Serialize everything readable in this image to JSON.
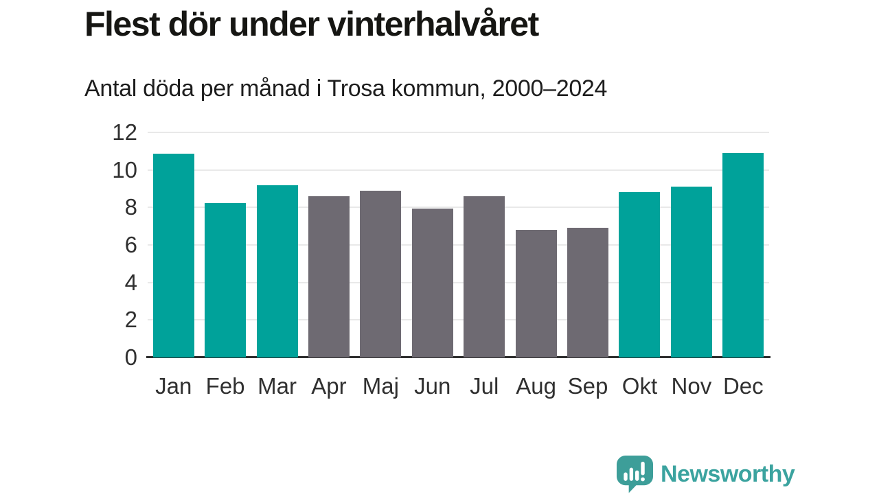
{
  "header": {
    "title": "Flest dör under vinterhalvåret",
    "subtitle": "Antal döda per månad i Trosa kommun, 2000–2024"
  },
  "chart_data": {
    "type": "bar",
    "categories": [
      "Jan",
      "Feb",
      "Mar",
      "Apr",
      "Maj",
      "Jun",
      "Jul",
      "Aug",
      "Sep",
      "Okt",
      "Nov",
      "Dec"
    ],
    "values": [
      10.85,
      8.25,
      9.2,
      8.6,
      8.9,
      7.95,
      8.6,
      6.8,
      6.9,
      8.8,
      9.1,
      10.9
    ],
    "title": "Flest dör under vinterhalvåret",
    "subtitle": "Antal döda per månad i Trosa kommun, 2000–2024",
    "xlabel": "",
    "ylabel": "",
    "ylim": [
      0,
      12
    ],
    "yticks": [
      0,
      2,
      4,
      6,
      8,
      10,
      12
    ],
    "grid": true,
    "legend": "none",
    "highlighted_categories": [
      "Jan",
      "Feb",
      "Mar",
      "Okt",
      "Nov",
      "Dec"
    ],
    "colors": {
      "highlight": "#00a29a",
      "base": "#6e6a72",
      "gridline": "#e9e9e9",
      "axis_line": "#2d2d2d",
      "axis_text": "#303030"
    }
  },
  "footer": {
    "brand": "Newsworthy",
    "logo_icon": "speech-bubble-bar-chart-icon",
    "brand_color": "#3ba39f",
    "icon_color": "#3d9e99"
  }
}
